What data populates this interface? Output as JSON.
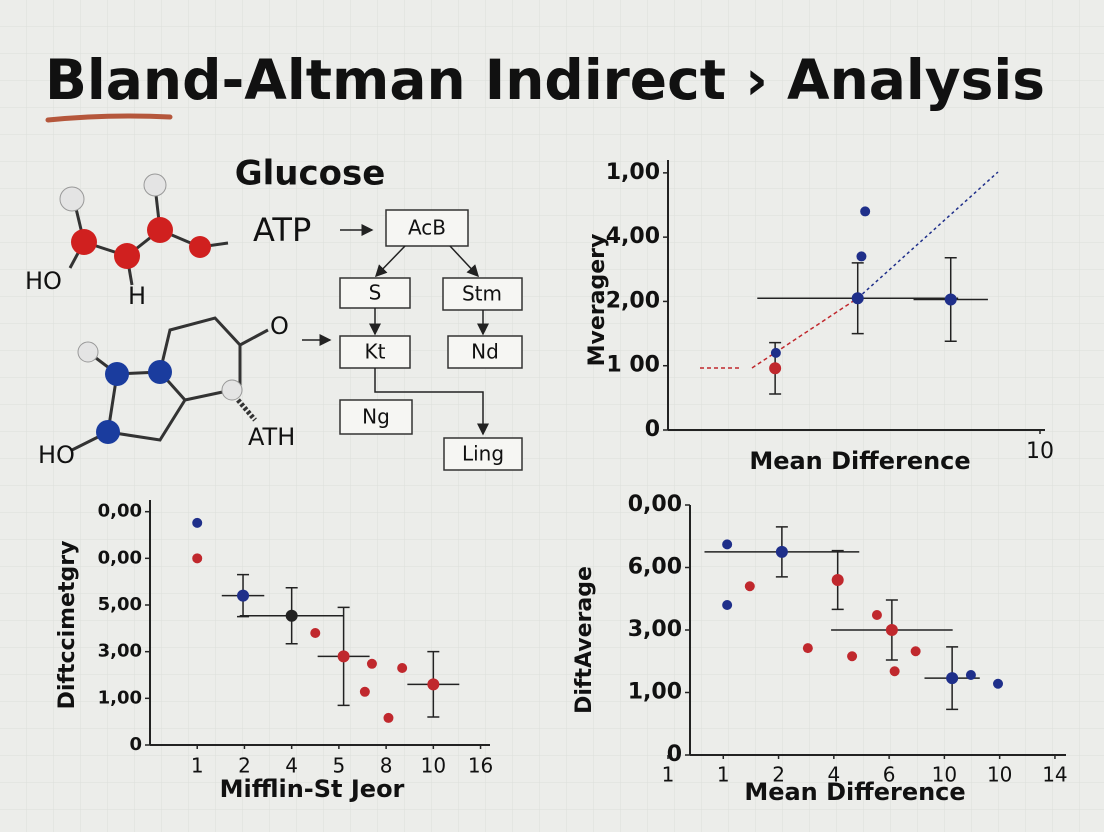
{
  "title": "Bland-Altman  Indirect › Analysis",
  "diagram": {
    "heading": "Glucose",
    "atoms": [
      "HO",
      "H",
      "O",
      "HO",
      "ATH"
    ],
    "atp": "ATP",
    "boxes": [
      "AcB",
      "S",
      "Stm",
      "Kt",
      "Nd",
      "Ng",
      "Ling"
    ]
  },
  "chart_data": [
    {
      "type": "scatter",
      "ylabel": "Mveragery",
      "xlabel": "Mean Difference",
      "xlim": [
        0,
        10
      ],
      "ylim": [
        0,
        4.2
      ],
      "xticks": [
        10
      ],
      "yticks": [
        0,
        {
          "value": 1,
          "label": "1 00"
        },
        {
          "value": 2,
          "label": "2,00"
        },
        {
          "value": 3,
          "label": "4,00"
        },
        {
          "value": 4,
          "label": "1,00"
        }
      ],
      "x": [
        2.88,
        2.9,
        5.1,
        5.2,
        5.3,
        7.6
      ],
      "values": [
        0.96,
        1.2,
        2.05,
        2.7,
        3.4,
        2.03
      ],
      "xerr": [
        null,
        null,
        2.7,
        null,
        null,
        1.0
      ],
      "yerr": [
        0.4,
        null,
        0.55,
        null,
        null,
        0.65
      ],
      "colors": [
        "#c0282d",
        "#1f2f8a",
        "#1f2f8a",
        "#1f2f8a",
        "#1f2f8a",
        "#1f2f8a"
      ]
    },
    {
      "type": "scatter",
      "ylabel": "Diftccimetgry",
      "xlabel": "Mifflin-St Jeor",
      "xlim": [
        0,
        7.2
      ],
      "ylim": [
        0,
        5.25
      ],
      "xticks": [
        1,
        2,
        {
          "value": 3,
          "label": "4"
        },
        {
          "value": 4,
          "label": "5"
        },
        {
          "value": 5,
          "label": "8"
        },
        {
          "value": 6,
          "label": "10"
        },
        {
          "value": 7,
          "label": "16"
        }
      ],
      "yticks": [
        0,
        {
          "value": 1,
          "label": "1,00"
        },
        {
          "value": 2,
          "label": "3,00"
        },
        {
          "value": 3,
          "label": "5,00"
        },
        {
          "value": 4,
          "label": "0,00"
        },
        {
          "value": 5,
          "label": "0,00"
        }
      ],
      "x": [
        1.0,
        1.0,
        1.97,
        3.0,
        3.5,
        4.1,
        4.7,
        4.55,
        5.34,
        5.05,
        6.0
      ],
      "values": [
        4.76,
        4.0,
        3.2,
        2.77,
        2.4,
        1.9,
        1.74,
        1.14,
        1.65,
        0.58,
        1.3
      ],
      "xerr": [
        null,
        null,
        0.45,
        1.1,
        null,
        0.55,
        null,
        null,
        null,
        null,
        0.55
      ],
      "yerr": [
        null,
        null,
        0.45,
        0.6,
        null,
        1.05,
        null,
        null,
        null,
        null,
        0.7
      ],
      "colors": [
        "#1f2f8a",
        "#c0282d",
        "#1f2f8a",
        "#222222",
        "#c0282d",
        "#c0282d",
        "#c0282d",
        "#c0282d",
        "#c0282d",
        "#c0282d",
        "#c0282d"
      ]
    },
    {
      "type": "scatter",
      "ylabel": "DiftAverage",
      "xlabel": "Mean Difference",
      "xlim": [
        0,
        7.2
      ],
      "ylim": [
        0,
        4
      ],
      "xticks": [
        {
          "value": 0,
          "label": "1"
        },
        1,
        2,
        {
          "value": 3,
          "label": "4"
        },
        {
          "value": 4,
          "label": "6"
        },
        {
          "value": 5,
          "label": "10"
        },
        {
          "value": 6,
          "label": "10"
        },
        {
          "value": 7,
          "label": "14"
        }
      ],
      "yticks": [
        0,
        {
          "value": 1,
          "label": "1,00"
        },
        {
          "value": 2,
          "label": "3,00"
        },
        {
          "value": 3,
          "label": "6,00"
        },
        {
          "value": 4,
          "label": "0,00"
        }
      ],
      "x": [
        1.07,
        1.07,
        1.48,
        2.06,
        3.07,
        2.53,
        3.33,
        3.78,
        4.05,
        4.1,
        4.48,
        5.14,
        5.48,
        5.97
      ],
      "values": [
        3.37,
        2.4,
        2.7,
        3.25,
        2.8,
        1.71,
        1.58,
        2.24,
        2.0,
        1.34,
        1.66,
        1.23,
        1.28,
        1.14
      ],
      "xerr": [
        null,
        null,
        null,
        1.4,
        null,
        null,
        null,
        null,
        1.1,
        null,
        null,
        0.5,
        null,
        null
      ],
      "yerr": [
        null,
        null,
        null,
        0.4,
        0.47,
        null,
        null,
        null,
        0.48,
        null,
        null,
        0.5,
        null,
        null
      ],
      "colors": [
        "#1f2f8a",
        "#1f2f8a",
        "#c0282d",
        "#1f2f8a",
        "#c0282d",
        "#c0282d",
        "#c0282d",
        "#c0282d",
        "#c0282d",
        "#c0282d",
        "#c0282d",
        "#1f2f8a",
        "#1f2f8a",
        "#1f2f8a"
      ]
    }
  ]
}
